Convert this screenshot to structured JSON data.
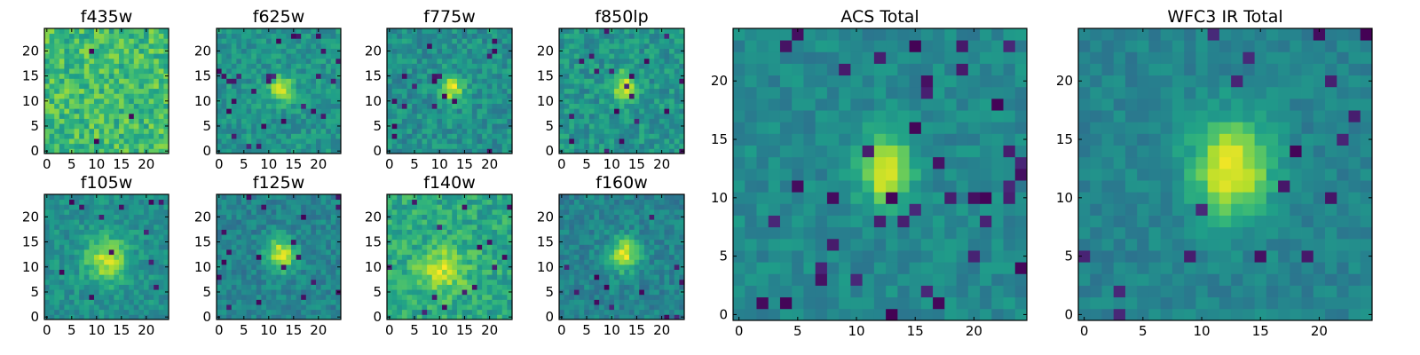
{
  "figure": {
    "description_free": true,
    "colormap": {
      "name": "viridis",
      "stops": [
        "#440154",
        "#482878",
        "#3e4989",
        "#31688e",
        "#26828e",
        "#1f9e89",
        "#35b779",
        "#6ece58",
        "#b5de2b",
        "#fde725"
      ]
    },
    "frame_color": "#000000",
    "background": "#ffffff"
  },
  "chart_data": [
    {
      "type": "heatmap",
      "title": "f435w",
      "grid_size": 25,
      "xticks": [
        0,
        5,
        10,
        15,
        20
      ],
      "yticks": [
        0,
        5,
        10,
        15,
        20
      ],
      "xlim": [
        0,
        24
      ],
      "ylim": [
        0,
        24
      ],
      "source": {
        "background": 0.68,
        "noise": 0.16,
        "peak": 0.0,
        "cx": 12.5,
        "cy": 12,
        "sigma_x": 2.0,
        "sigma_y": 2.5,
        "dark_fraction": 0.01,
        "seed": 11
      }
    },
    {
      "type": "heatmap",
      "title": "f625w",
      "grid_size": 25,
      "xticks": [
        0,
        5,
        10,
        15,
        20
      ],
      "yticks": [
        0,
        5,
        10,
        15,
        20
      ],
      "xlim": [
        0,
        24
      ],
      "ylim": [
        0,
        24
      ],
      "source": {
        "background": 0.52,
        "noise": 0.11,
        "peak": 0.45,
        "cx": 12.5,
        "cy": 12.5,
        "sigma_x": 1.6,
        "sigma_y": 1.8,
        "dark_fraction": 0.04,
        "seed": 23
      }
    },
    {
      "type": "heatmap",
      "title": "f775w",
      "grid_size": 25,
      "xticks": [
        0,
        5,
        10,
        15,
        20
      ],
      "yticks": [
        0,
        5,
        10,
        15,
        20
      ],
      "xlim": [
        0,
        24
      ],
      "ylim": [
        0,
        24
      ],
      "source": {
        "background": 0.5,
        "noise": 0.12,
        "peak": 0.45,
        "cx": 12.5,
        "cy": 12.5,
        "sigma_x": 1.6,
        "sigma_y": 1.8,
        "dark_fraction": 0.03,
        "seed": 37
      }
    },
    {
      "type": "heatmap",
      "title": "f850lp",
      "grid_size": 25,
      "xticks": [
        0,
        5,
        10,
        15,
        20
      ],
      "yticks": [
        0,
        5,
        10,
        15,
        20
      ],
      "xlim": [
        0,
        24
      ],
      "ylim": [
        0,
        24
      ],
      "source": {
        "background": 0.52,
        "noise": 0.12,
        "peak": 0.42,
        "cx": 12.5,
        "cy": 13,
        "sigma_x": 1.6,
        "sigma_y": 2.0,
        "dark_fraction": 0.03,
        "seed": 41
      }
    },
    {
      "type": "heatmap",
      "title": "f105w",
      "grid_size": 25,
      "xticks": [
        0,
        5,
        10,
        15,
        20
      ],
      "yticks": [
        0,
        5,
        10,
        15,
        20
      ],
      "xlim": [
        0,
        24
      ],
      "ylim": [
        0,
        24
      ],
      "source": {
        "background": 0.5,
        "noise": 0.1,
        "peak": 0.4,
        "cx": 12,
        "cy": 11.5,
        "sigma_x": 3.0,
        "sigma_y": 3.2,
        "dark_fraction": 0.02,
        "seed": 53
      }
    },
    {
      "type": "heatmap",
      "title": "f125w",
      "grid_size": 25,
      "xticks": [
        0,
        5,
        10,
        15,
        20
      ],
      "yticks": [
        0,
        5,
        10,
        15,
        20
      ],
      "xlim": [
        0,
        24
      ],
      "ylim": [
        0,
        24
      ],
      "source": {
        "background": 0.45,
        "noise": 0.1,
        "peak": 0.5,
        "cx": 12.5,
        "cy": 12.5,
        "sigma_x": 2.0,
        "sigma_y": 2.4,
        "dark_fraction": 0.03,
        "seed": 61
      }
    },
    {
      "type": "heatmap",
      "title": "f140w",
      "grid_size": 25,
      "xticks": [
        0,
        5,
        10,
        15,
        20
      ],
      "yticks": [
        0,
        5,
        10,
        15,
        20
      ],
      "xlim": [
        0,
        24
      ],
      "ylim": [
        0,
        24
      ],
      "source": {
        "background": 0.6,
        "noise": 0.13,
        "peak": 0.3,
        "cx": 10.5,
        "cy": 9.5,
        "sigma_x": 3.5,
        "sigma_y": 3.2,
        "dark_fraction": 0.02,
        "seed": 71
      }
    },
    {
      "type": "heatmap",
      "title": "f160w",
      "grid_size": 25,
      "xticks": [
        0,
        5,
        10,
        15,
        20
      ],
      "yticks": [
        0,
        5,
        10,
        15,
        20
      ],
      "xlim": [
        0,
        24
      ],
      "ylim": [
        0,
        24
      ],
      "source": {
        "background": 0.45,
        "noise": 0.1,
        "peak": 0.5,
        "cx": 12.5,
        "cy": 12.5,
        "sigma_x": 2.0,
        "sigma_y": 2.3,
        "dark_fraction": 0.02,
        "seed": 83
      }
    },
    {
      "type": "heatmap",
      "title": "ACS Total",
      "grid_size": 25,
      "xticks": [
        0,
        5,
        10,
        15,
        20
      ],
      "yticks": [
        0,
        5,
        10,
        15,
        20
      ],
      "xlim": [
        0,
        24
      ],
      "ylim": [
        0,
        24
      ],
      "source": {
        "background": 0.47,
        "noise": 0.08,
        "peak": 0.55,
        "cx": 12.5,
        "cy": 12.5,
        "sigma_x": 1.5,
        "sigma_y": 2.0,
        "dark_fraction": 0.06,
        "seed": 97
      }
    },
    {
      "type": "heatmap",
      "title": "WFC3 IR Total",
      "grid_size": 25,
      "xticks": [
        0,
        5,
        10,
        15,
        20
      ],
      "yticks": [
        0,
        5,
        10,
        15,
        20
      ],
      "xlim": [
        0,
        24
      ],
      "ylim": [
        0,
        24
      ],
      "source": {
        "background": 0.45,
        "noise": 0.07,
        "peak": 0.55,
        "cx": 12.5,
        "cy": 12.5,
        "sigma_x": 2.3,
        "sigma_y": 2.9,
        "dark_fraction": 0.04,
        "seed": 103
      }
    }
  ]
}
